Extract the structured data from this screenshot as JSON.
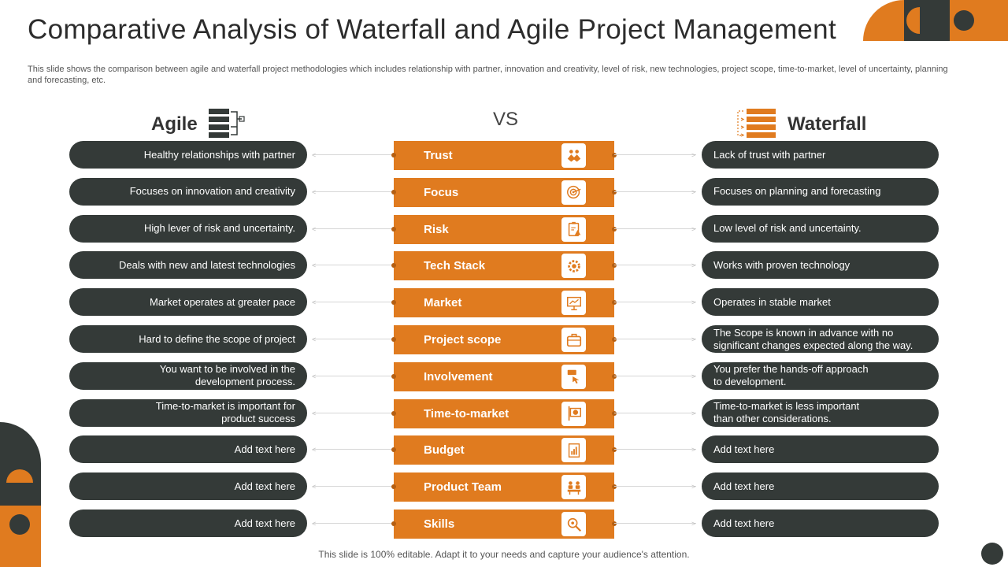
{
  "header": {
    "title": "Comparative Analysis of Waterfall and Agile Project Management",
    "description": "This slide shows the comparison between agile and waterfall project methodologies which includes relationship with partner, innovation and creativity,  level of risk, new technologies, project scope, time-to-market, level of uncertainty, planning and forecasting, etc."
  },
  "columns": {
    "left": "Agile",
    "middle": "VS",
    "right": "Waterfall"
  },
  "colors": {
    "accent": "#e07b1f",
    "dark": "#343a38"
  },
  "rows": [
    {
      "agile": "Healthy relationships with partner",
      "criterion": "Trust",
      "icon": "handshake-icon",
      "waterfall": "Lack of trust with partner"
    },
    {
      "agile": "Focuses on innovation  and creativity",
      "criterion": "Focus",
      "icon": "target-icon",
      "waterfall": "Focuses on planning and forecasting"
    },
    {
      "agile": "High lever of risk and uncertainty.",
      "criterion": "Risk",
      "icon": "risk-clipboard-icon",
      "waterfall": "Low level  of risk and uncertainty."
    },
    {
      "agile": "Deals with new and latest technologies",
      "criterion": "Tech Stack",
      "icon": "gear-icon",
      "waterfall": "Works with  proven  technology"
    },
    {
      "agile": "Market operates at greater pace",
      "criterion": "Market",
      "icon": "presentation-icon",
      "waterfall": "Operates in stable market"
    },
    {
      "agile": "Hard to define  the scope of project",
      "criterion": "Project scope",
      "icon": "briefcase-icon",
      "waterfall": "The Scope is known in advance  with no\nsignificant changes expected along the way."
    },
    {
      "agile": "You want to be involved  in the\ndevelopment  process.",
      "criterion": "Involvement",
      "icon": "hand-pointer-icon",
      "waterfall": "You prefer the hands-off approach\nto development."
    },
    {
      "agile": "Time-to-market  is important for\nproduct success",
      "criterion": "Time-to-market",
      "icon": "clock-sign-icon",
      "waterfall": "Time-to-market  is less important\nthan other considerations."
    },
    {
      "agile": "Add text here",
      "criterion": "Budget",
      "icon": "bar-report-icon",
      "waterfall": "Add text here"
    },
    {
      "agile": "Add text here",
      "criterion": "Product Team",
      "icon": "team-icon",
      "waterfall": "Add text here"
    },
    {
      "agile": "Add text here",
      "criterion": "Skills",
      "icon": "magnifier-skill-icon",
      "waterfall": "Add text here"
    }
  ],
  "footer": "This slide is 100% editable. Adapt it to your needs and capture your audience's attention."
}
